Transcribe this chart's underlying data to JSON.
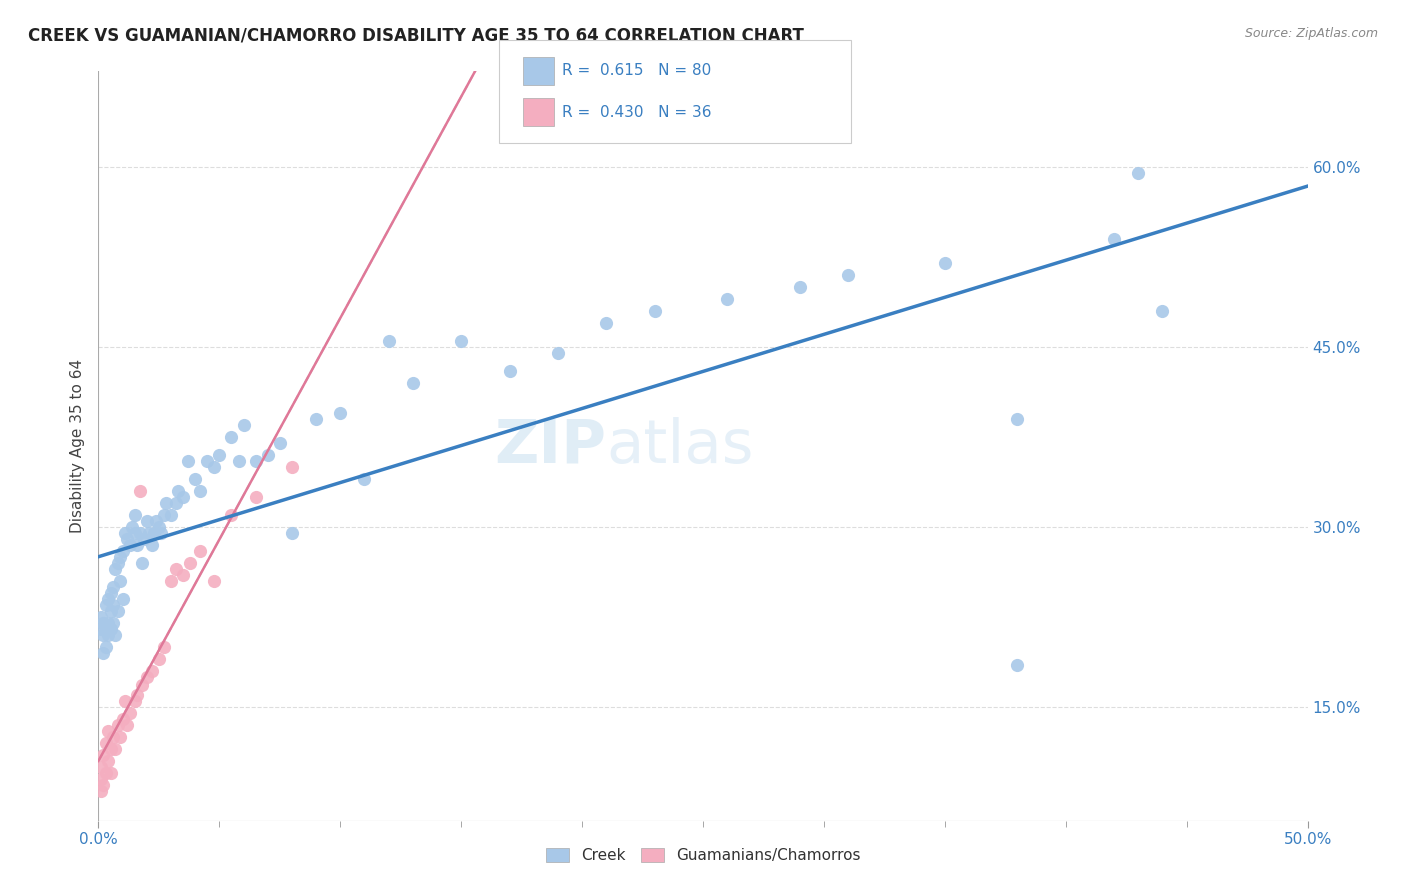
{
  "title": "CREEK VS GUAMANIAN/CHAMORRO DISABILITY AGE 35 TO 64 CORRELATION CHART",
  "source": "Source: ZipAtlas.com",
  "ylabel": "Disability Age 35 to 64",
  "xlim": [
    0.0,
    0.5
  ],
  "ylim": [
    0.055,
    0.68
  ],
  "x_tick_labels_shown": [
    "0.0%",
    "50.0%"
  ],
  "x_tick_labels_pos": [
    0.0,
    0.5
  ],
  "y_ticks": [
    0.15,
    0.3,
    0.45,
    0.6
  ],
  "y_tick_labels": [
    "15.0%",
    "30.0%",
    "45.0%",
    "60.0%"
  ],
  "creek_color": "#a8c8e8",
  "creek_edge_color": "#7aaad0",
  "guam_color": "#f4aec0",
  "guam_edge_color": "#e07898",
  "creek_line_color": "#3a7fc1",
  "guam_line_color": "#e07898",
  "gray_dash_color": "#bbbbbb",
  "creek_R": 0.615,
  "creek_N": 80,
  "guam_R": 0.43,
  "guam_N": 36,
  "watermark": "ZIPatlas",
  "background_color": "#ffffff",
  "grid_color": "#dddddd",
  "creek_scatter_x": [
    0.001,
    0.001,
    0.002,
    0.002,
    0.002,
    0.003,
    0.003,
    0.003,
    0.004,
    0.004,
    0.004,
    0.005,
    0.005,
    0.005,
    0.006,
    0.006,
    0.006,
    0.007,
    0.007,
    0.008,
    0.008,
    0.009,
    0.009,
    0.01,
    0.01,
    0.011,
    0.012,
    0.013,
    0.014,
    0.015,
    0.015,
    0.016,
    0.017,
    0.018,
    0.019,
    0.02,
    0.021,
    0.022,
    0.023,
    0.024,
    0.025,
    0.026,
    0.027,
    0.028,
    0.03,
    0.032,
    0.033,
    0.035,
    0.037,
    0.04,
    0.042,
    0.045,
    0.048,
    0.05,
    0.055,
    0.058,
    0.06,
    0.065,
    0.07,
    0.075,
    0.08,
    0.09,
    0.1,
    0.11,
    0.12,
    0.13,
    0.15,
    0.17,
    0.19,
    0.21,
    0.23,
    0.26,
    0.29,
    0.31,
    0.35,
    0.38,
    0.42,
    0.44,
    0.38,
    0.43
  ],
  "creek_scatter_y": [
    0.215,
    0.225,
    0.195,
    0.21,
    0.22,
    0.2,
    0.215,
    0.235,
    0.22,
    0.24,
    0.21,
    0.215,
    0.23,
    0.245,
    0.22,
    0.235,
    0.25,
    0.21,
    0.265,
    0.23,
    0.27,
    0.255,
    0.275,
    0.24,
    0.28,
    0.295,
    0.29,
    0.285,
    0.3,
    0.295,
    0.31,
    0.285,
    0.295,
    0.27,
    0.29,
    0.305,
    0.295,
    0.285,
    0.295,
    0.305,
    0.3,
    0.295,
    0.31,
    0.32,
    0.31,
    0.32,
    0.33,
    0.325,
    0.355,
    0.34,
    0.33,
    0.355,
    0.35,
    0.36,
    0.375,
    0.355,
    0.385,
    0.355,
    0.36,
    0.37,
    0.295,
    0.39,
    0.395,
    0.34,
    0.455,
    0.42,
    0.455,
    0.43,
    0.445,
    0.47,
    0.48,
    0.49,
    0.5,
    0.51,
    0.52,
    0.39,
    0.54,
    0.48,
    0.185,
    0.595
  ],
  "guam_scatter_x": [
    0.001,
    0.001,
    0.001,
    0.002,
    0.002,
    0.003,
    0.003,
    0.004,
    0.004,
    0.005,
    0.005,
    0.006,
    0.007,
    0.008,
    0.009,
    0.01,
    0.011,
    0.012,
    0.013,
    0.015,
    0.016,
    0.017,
    0.018,
    0.02,
    0.022,
    0.025,
    0.027,
    0.03,
    0.032,
    0.035,
    0.038,
    0.042,
    0.048,
    0.055,
    0.065,
    0.08
  ],
  "guam_scatter_y": [
    0.08,
    0.09,
    0.1,
    0.085,
    0.11,
    0.095,
    0.12,
    0.105,
    0.13,
    0.115,
    0.095,
    0.125,
    0.115,
    0.135,
    0.125,
    0.14,
    0.155,
    0.135,
    0.145,
    0.155,
    0.16,
    0.33,
    0.168,
    0.175,
    0.18,
    0.19,
    0.2,
    0.255,
    0.265,
    0.26,
    0.27,
    0.28,
    0.255,
    0.31,
    0.325,
    0.35
  ]
}
